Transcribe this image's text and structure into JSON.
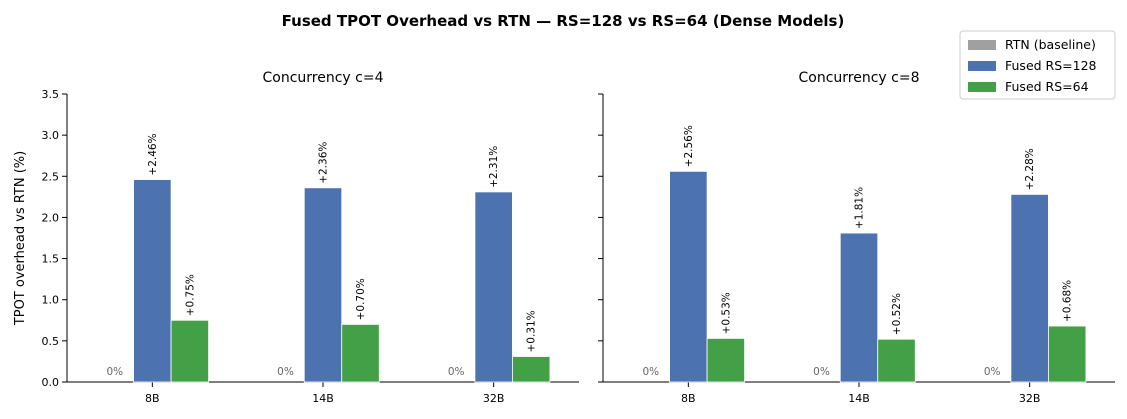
{
  "chart_data": {
    "type": "bar",
    "title": "Fused TPOT Overhead vs RTN — RS=128 vs RS=64 (Dense Models)",
    "ylabel": "TPOT overhead vs RTN (%)",
    "ylim": [
      0,
      3.5
    ],
    "yticks": [
      "0.0",
      "0.5",
      "1.0",
      "1.5",
      "2.0",
      "2.5",
      "3.0",
      "3.5"
    ],
    "categories": [
      "8B",
      "14B",
      "32B"
    ],
    "legend_position": "top-right",
    "grid": false,
    "series_meta": [
      {
        "name": "RTN (baseline)",
        "color": "#a0a0a0"
      },
      {
        "name": "Fused RS=128",
        "color": "#4c72b0"
      },
      {
        "name": "Fused RS=64",
        "color": "#43a047"
      }
    ],
    "panels": [
      {
        "title": "Concurrency c=4",
        "series": [
          {
            "name": "RTN (baseline)",
            "values": [
              0,
              0,
              0
            ],
            "labels": [
              "0%",
              "0%",
              "0%"
            ]
          },
          {
            "name": "Fused RS=128",
            "values": [
              2.46,
              2.36,
              2.31
            ],
            "labels": [
              "+2.46%",
              "+2.36%",
              "+2.31%"
            ]
          },
          {
            "name": "Fused RS=64",
            "values": [
              0.75,
              0.7,
              0.31
            ],
            "labels": [
              "+0.75%",
              "+0.70%",
              "+0.31%"
            ]
          }
        ]
      },
      {
        "title": "Concurrency c=8",
        "series": [
          {
            "name": "RTN (baseline)",
            "values": [
              0,
              0,
              0
            ],
            "labels": [
              "0%",
              "0%",
              "0%"
            ]
          },
          {
            "name": "Fused RS=128",
            "values": [
              2.56,
              1.81,
              2.28
            ],
            "labels": [
              "+2.56%",
              "+1.81%",
              "+2.28%"
            ]
          },
          {
            "name": "Fused RS=64",
            "values": [
              0.53,
              0.52,
              0.68
            ],
            "labels": [
              "+0.53%",
              "+0.52%",
              "+0.68%"
            ]
          }
        ]
      }
    ]
  }
}
